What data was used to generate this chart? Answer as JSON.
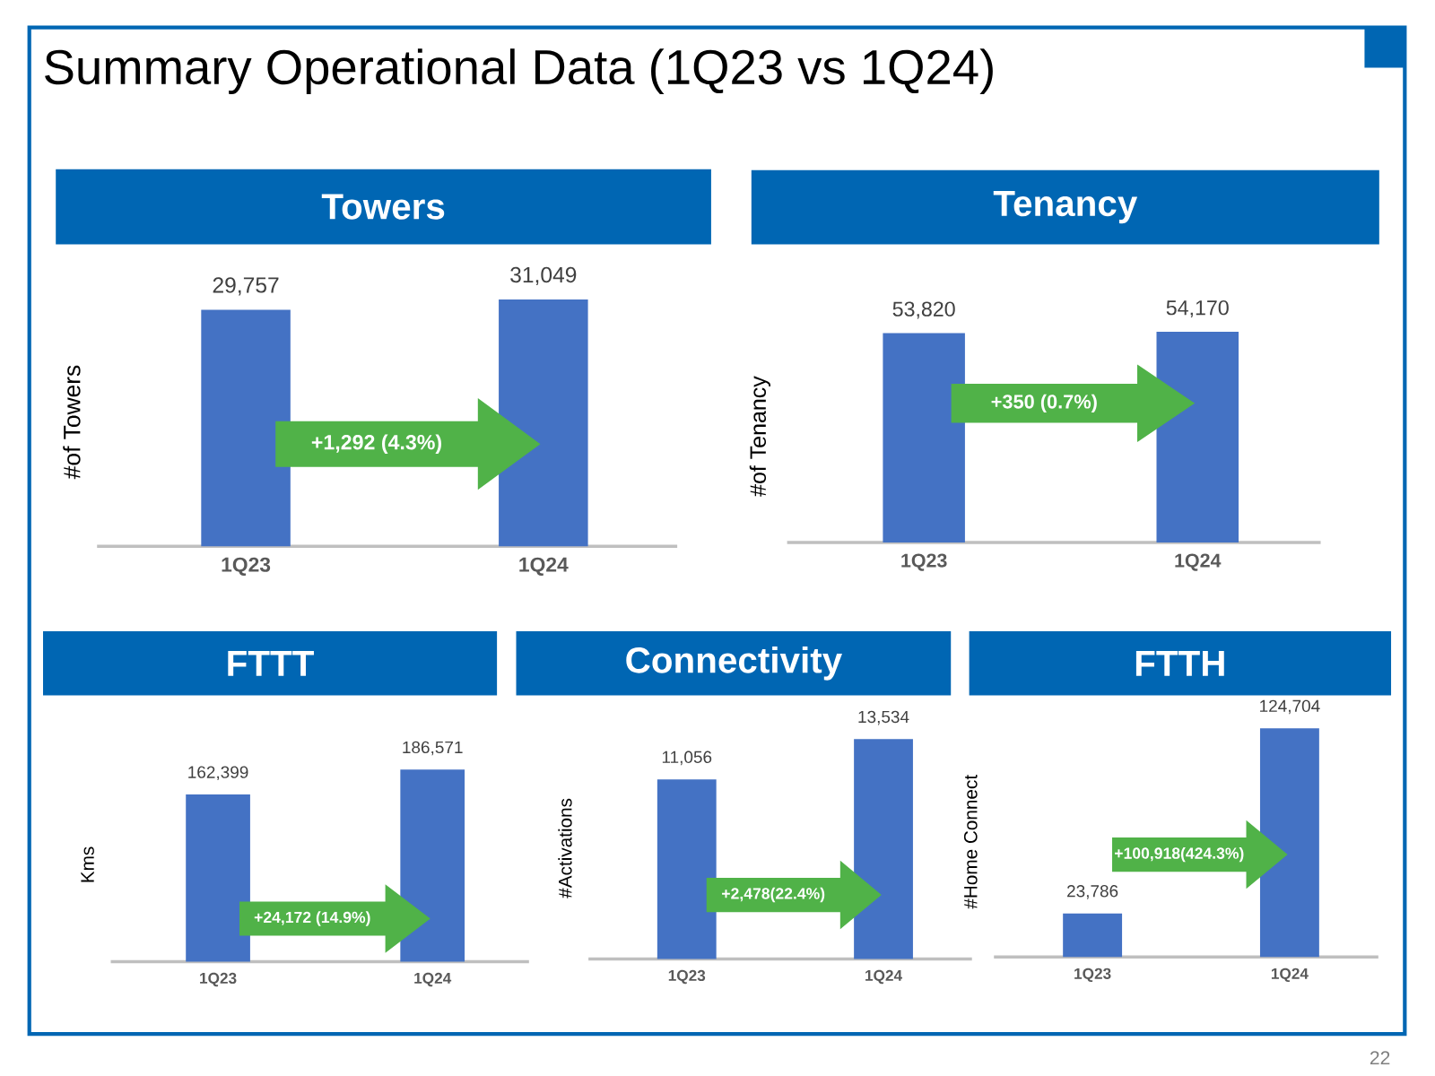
{
  "chart_data": [
    {
      "type": "other",
      "title": "Summary Operational Data (1Q23 vs 1Q24)",
      "annotations": [
        "22"
      ]
    },
    {
      "type": "bar",
      "title": "Towers",
      "ylabel": "#of Towers",
      "categories": [
        "1Q23",
        "1Q24"
      ],
      "values": [
        29757,
        31049
      ],
      "value_labels": [
        "29,757",
        "31,049"
      ],
      "color": "#4472c4",
      "tick_labels": "x",
      "annotations": [
        "+1,292 (4.3%)"
      ]
    },
    {
      "type": "bar",
      "title": "Tenancy",
      "ylabel": "#of Tenancy",
      "categories": [
        "1Q23",
        "1Q24"
      ],
      "values": [
        53820,
        54170
      ],
      "value_labels": [
        "53,820",
        "54,170"
      ],
      "color": "#4472c4",
      "tick_labels": "x",
      "annotations": [
        "+350 (0.7%)"
      ]
    },
    {
      "type": "bar",
      "title": "FTTT",
      "ylabel": "Kms",
      "categories": [
        "1Q23",
        "1Q24"
      ],
      "values": [
        162399,
        186571
      ],
      "value_labels": [
        "162,399",
        "186,571"
      ],
      "color": "#4472c4",
      "tick_labels": "x",
      "annotations": [
        "+24,172 (14.9%)"
      ]
    },
    {
      "type": "bar",
      "title": "Connectivity",
      "ylabel": "#Activations",
      "categories": [
        "1Q23",
        "1Q24"
      ],
      "values": [
        11056,
        13534
      ],
      "value_labels": [
        "11,056",
        "13,534"
      ],
      "color": "#4472c4",
      "tick_labels": "x",
      "annotations": [
        "+2,478(22.4%)"
      ]
    },
    {
      "type": "bar",
      "title": "FTTH",
      "ylabel": "#Home Connect",
      "categories": [
        "1Q23",
        "1Q24"
      ],
      "values": [
        23786,
        124704
      ],
      "value_labels": [
        "23,786",
        "124,704"
      ],
      "color": "#4472c4",
      "tick_labels": "x",
      "annotations": [
        "+100,918(424.3%)"
      ]
    }
  ]
}
